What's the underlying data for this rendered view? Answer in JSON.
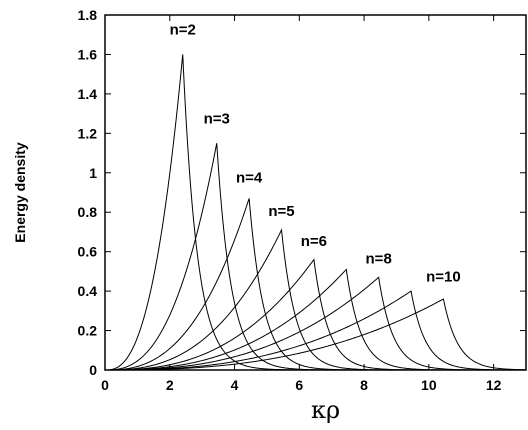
{
  "chart_data": {
    "type": "line",
    "title": "",
    "xlabel": "κρ",
    "ylabel": "Energy density",
    "xlim": [
      0,
      13
    ],
    "ylim": [
      0,
      1.8
    ],
    "x_ticks": [
      0,
      2,
      4,
      6,
      8,
      10,
      12
    ],
    "x_tick_labels": [
      "0",
      "2",
      "4",
      "6",
      "8",
      "10",
      "12"
    ],
    "y_ticks": [
      0,
      0.2,
      0.4,
      0.6,
      0.8,
      1,
      1.2,
      1.4,
      1.6,
      1.8
    ],
    "y_tick_labels": [
      "0",
      "0.2",
      "0.4",
      "0.6",
      "0.8",
      "1",
      "1.2",
      "1.4",
      "1.6",
      "1.8"
    ],
    "grid": false,
    "legend": "none",
    "peaks": [
      {
        "n": 2,
        "x": 2.4,
        "y": 1.6
      },
      {
        "n": 3,
        "x": 3.45,
        "y": 1.15
      },
      {
        "n": 4,
        "x": 4.45,
        "y": 0.87
      },
      {
        "n": 5,
        "x": 5.45,
        "y": 0.71
      },
      {
        "n": 6,
        "x": 6.45,
        "y": 0.56
      },
      {
        "n": 7,
        "x": 7.45,
        "y": 0.51
      },
      {
        "n": 8,
        "x": 8.45,
        "y": 0.47
      },
      {
        "n": 9,
        "x": 9.45,
        "y": 0.4
      },
      {
        "n": 10,
        "x": 10.45,
        "y": 0.36
      }
    ],
    "annotations": [
      {
        "text": "n=2",
        "x": 2.4,
        "y": 1.7
      },
      {
        "text": "n=3",
        "x": 3.45,
        "y": 1.25
      },
      {
        "text": "n=4",
        "x": 4.45,
        "y": 0.95
      },
      {
        "text": "n=5",
        "x": 5.45,
        "y": 0.78
      },
      {
        "text": "n=6",
        "x": 6.45,
        "y": 0.63
      },
      {
        "text": "n=8",
        "x": 8.45,
        "y": 0.54
      },
      {
        "text": "n=10",
        "x": 10.45,
        "y": 0.45
      }
    ]
  }
}
